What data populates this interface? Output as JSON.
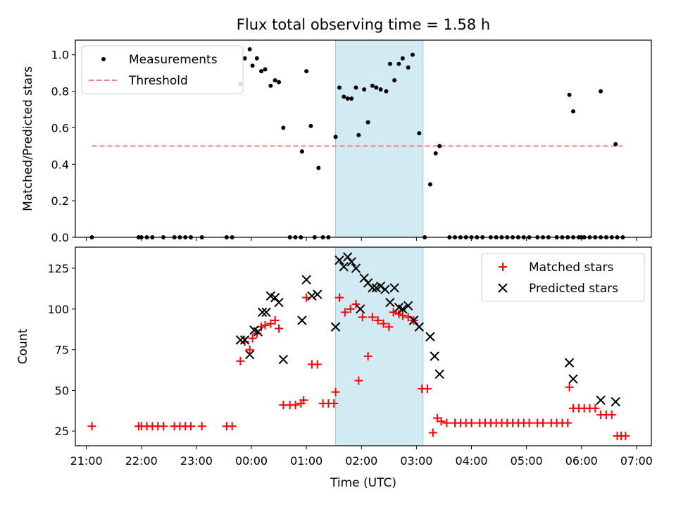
{
  "chart_data": [
    {
      "type": "scatter",
      "title": "Flux total observing time = 1.58 h",
      "xlabel": "",
      "ylabel": "Matched/Predicted stars",
      "xlim_hours": [
        20.8,
        31.27
      ],
      "ylim": [
        0,
        1.08
      ],
      "yticks": [
        "0.0",
        "0.2",
        "0.4",
        "0.6",
        "0.8",
        "1.0"
      ],
      "highlight_span_hours": [
        25.53,
        27.12
      ],
      "threshold": {
        "name": "Threshold",
        "y": 0.5,
        "x_range_hours": [
          21.1,
          30.75
        ],
        "color": "#f08080"
      },
      "legend": {
        "placement": "upper-left",
        "entries": [
          "Measurements",
          "Threshold"
        ]
      },
      "series": [
        {
          "name": "Measurements",
          "color": "#000000",
          "points": [
            [
              21.1,
              0
            ],
            [
              21.95,
              0
            ],
            [
              22.0,
              0
            ],
            [
              22.1,
              0
            ],
            [
              22.2,
              0
            ],
            [
              22.4,
              0
            ],
            [
              22.6,
              0
            ],
            [
              22.7,
              0
            ],
            [
              22.8,
              0
            ],
            [
              22.9,
              0
            ],
            [
              23.1,
              0
            ],
            [
              23.55,
              0
            ],
            [
              23.65,
              0
            ],
            [
              23.8,
              0.84
            ],
            [
              23.88,
              0.98
            ],
            [
              23.97,
              1.03
            ],
            [
              24.02,
              0.94
            ],
            [
              24.1,
              0.98
            ],
            [
              24.18,
              0.91
            ],
            [
              24.25,
              0.92
            ],
            [
              24.35,
              0.83
            ],
            [
              24.43,
              0.86
            ],
            [
              24.5,
              0.85
            ],
            [
              24.58,
              0.6
            ],
            [
              24.7,
              0
            ],
            [
              24.8,
              0
            ],
            [
              24.9,
              0
            ],
            [
              24.92,
              0.47
            ],
            [
              25.0,
              0.91
            ],
            [
              25.08,
              0.61
            ],
            [
              25.15,
              0
            ],
            [
              25.22,
              0.38
            ],
            [
              25.3,
              0
            ],
            [
              25.4,
              0
            ],
            [
              25.53,
              0.55
            ],
            [
              25.6,
              0.82
            ],
            [
              25.68,
              0.77
            ],
            [
              25.75,
              0.76
            ],
            [
              25.82,
              0.76
            ],
            [
              25.9,
              0.82
            ],
            [
              25.95,
              0.56
            ],
            [
              26.05,
              0.81
            ],
            [
              26.12,
              0.63
            ],
            [
              26.2,
              0.83
            ],
            [
              26.27,
              0.82
            ],
            [
              26.35,
              0.81
            ],
            [
              26.45,
              0.8
            ],
            [
              26.52,
              0.95
            ],
            [
              26.6,
              0.86
            ],
            [
              26.68,
              0.95
            ],
            [
              26.75,
              0.98
            ],
            [
              26.85,
              0.93
            ],
            [
              26.93,
              1.0
            ],
            [
              27.05,
              0.57
            ],
            [
              27.15,
              0
            ],
            [
              27.25,
              0.29
            ],
            [
              27.35,
              0.46
            ],
            [
              27.42,
              0.5
            ],
            [
              27.6,
              0
            ],
            [
              27.7,
              0
            ],
            [
              27.8,
              0
            ],
            [
              27.9,
              0
            ],
            [
              28.0,
              0
            ],
            [
              28.1,
              0
            ],
            [
              28.2,
              0
            ],
            [
              28.35,
              0
            ],
            [
              28.45,
              0
            ],
            [
              28.55,
              0
            ],
            [
              28.65,
              0
            ],
            [
              28.75,
              0
            ],
            [
              28.85,
              0
            ],
            [
              28.95,
              0
            ],
            [
              29.05,
              0
            ],
            [
              29.2,
              0
            ],
            [
              29.3,
              0
            ],
            [
              29.4,
              0
            ],
            [
              29.55,
              0
            ],
            [
              29.65,
              0
            ],
            [
              29.75,
              0
            ],
            [
              29.85,
              0
            ],
            [
              29.95,
              0
            ],
            [
              30.0,
              0
            ],
            [
              30.05,
              0
            ],
            [
              30.15,
              0
            ],
            [
              30.25,
              0
            ],
            [
              30.35,
              0
            ],
            [
              30.45,
              0
            ],
            [
              30.55,
              0
            ],
            [
              30.65,
              0
            ],
            [
              30.75,
              0
            ],
            [
              29.78,
              0.78
            ],
            [
              29.85,
              0.69
            ],
            [
              30.35,
              0.8
            ],
            [
              30.62,
              0.51
            ]
          ]
        }
      ]
    },
    {
      "type": "scatter",
      "title": "",
      "xlabel": "Time (UTC)",
      "ylabel": "Count",
      "xlim_hours": [
        20.8,
        31.27
      ],
      "ylim": [
        16,
        138
      ],
      "yticks": [
        "25",
        "50",
        "75",
        "100",
        "125"
      ],
      "xticks": [
        "21:00",
        "22:00",
        "23:00",
        "00:00",
        "01:00",
        "02:00",
        "03:00",
        "04:00",
        "05:00",
        "06:00",
        "07:00"
      ],
      "highlight_span_hours": [
        25.53,
        27.12
      ],
      "legend": {
        "placement": "upper-right",
        "entries": [
          "Matched stars",
          "Predicted stars"
        ]
      },
      "series": [
        {
          "name": "Matched stars",
          "color": "#ff0000",
          "marker": "+",
          "points": [
            [
              21.1,
              28
            ],
            [
              21.95,
              28
            ],
            [
              22.0,
              28
            ],
            [
              22.1,
              28
            ],
            [
              22.2,
              28
            ],
            [
              22.3,
              28
            ],
            [
              22.4,
              28
            ],
            [
              22.6,
              28
            ],
            [
              22.7,
              28
            ],
            [
              22.8,
              28
            ],
            [
              22.9,
              28
            ],
            [
              23.1,
              28
            ],
            [
              23.55,
              28
            ],
            [
              23.65,
              28
            ],
            [
              23.8,
              68
            ],
            [
              23.88,
              80
            ],
            [
              23.97,
              75
            ],
            [
              24.02,
              82
            ],
            [
              24.1,
              85
            ],
            [
              24.18,
              89
            ],
            [
              24.25,
              90
            ],
            [
              24.35,
              91
            ],
            [
              24.43,
              93
            ],
            [
              24.5,
              88
            ],
            [
              24.58,
              41
            ],
            [
              24.7,
              41
            ],
            [
              24.8,
              41
            ],
            [
              24.9,
              42
            ],
            [
              24.95,
              44
            ],
            [
              25.0,
              107
            ],
            [
              25.1,
              66
            ],
            [
              25.2,
              66
            ],
            [
              25.3,
              42
            ],
            [
              25.4,
              42
            ],
            [
              25.5,
              42
            ],
            [
              25.53,
              49
            ],
            [
              25.6,
              107
            ],
            [
              25.7,
              98
            ],
            [
              25.8,
              100
            ],
            [
              25.9,
              103
            ],
            [
              25.95,
              56
            ],
            [
              26.02,
              95
            ],
            [
              26.12,
              71
            ],
            [
              26.2,
              95
            ],
            [
              26.3,
              93
            ],
            [
              26.4,
              91
            ],
            [
              26.5,
              89
            ],
            [
              26.58,
              98
            ],
            [
              26.68,
              97
            ],
            [
              26.75,
              96
            ],
            [
              26.85,
              95
            ],
            [
              26.95,
              93
            ],
            [
              27.1,
              51
            ],
            [
              27.2,
              51
            ],
            [
              27.3,
              24
            ],
            [
              27.38,
              33
            ],
            [
              27.45,
              31
            ],
            [
              27.55,
              30
            ],
            [
              27.7,
              30
            ],
            [
              27.8,
              30
            ],
            [
              27.9,
              30
            ],
            [
              28.0,
              30
            ],
            [
              28.15,
              30
            ],
            [
              28.25,
              30
            ],
            [
              28.35,
              30
            ],
            [
              28.45,
              30
            ],
            [
              28.55,
              30
            ],
            [
              28.65,
              30
            ],
            [
              28.75,
              30
            ],
            [
              28.85,
              30
            ],
            [
              28.95,
              30
            ],
            [
              29.05,
              30
            ],
            [
              29.2,
              30
            ],
            [
              29.3,
              30
            ],
            [
              29.45,
              30
            ],
            [
              29.55,
              30
            ],
            [
              29.65,
              30
            ],
            [
              29.75,
              30
            ],
            [
              29.78,
              52
            ],
            [
              29.85,
              39
            ],
            [
              29.95,
              39
            ],
            [
              30.05,
              39
            ],
            [
              30.15,
              39
            ],
            [
              30.25,
              39
            ],
            [
              30.35,
              35
            ],
            [
              30.45,
              35
            ],
            [
              30.55,
              35
            ],
            [
              30.65,
              22
            ],
            [
              30.72,
              22
            ],
            [
              30.8,
              22
            ]
          ]
        },
        {
          "name": "Predicted stars",
          "color": "#000000",
          "marker": "x",
          "points": [
            [
              23.8,
              81
            ],
            [
              23.88,
              81
            ],
            [
              23.97,
              72
            ],
            [
              24.05,
              87
            ],
            [
              24.12,
              86
            ],
            [
              24.2,
              98
            ],
            [
              24.27,
              98
            ],
            [
              24.35,
              108
            ],
            [
              24.43,
              107
            ],
            [
              24.5,
              104
            ],
            [
              24.58,
              69
            ],
            [
              24.92,
              93
            ],
            [
              25.0,
              118
            ],
            [
              25.1,
              108
            ],
            [
              25.2,
              109
            ],
            [
              25.53,
              89
            ],
            [
              25.6,
              130
            ],
            [
              25.68,
              126
            ],
            [
              25.75,
              132
            ],
            [
              25.82,
              129
            ],
            [
              25.9,
              125
            ],
            [
              25.98,
              100
            ],
            [
              26.05,
              119
            ],
            [
              26.12,
              116
            ],
            [
              26.2,
              113
            ],
            [
              26.27,
              113
            ],
            [
              26.35,
              114
            ],
            [
              26.43,
              112
            ],
            [
              26.52,
              104
            ],
            [
              26.6,
              113
            ],
            [
              26.68,
              101
            ],
            [
              26.75,
              100
            ],
            [
              26.85,
              102
            ],
            [
              26.95,
              93
            ],
            [
              27.05,
              89
            ],
            [
              27.25,
              83
            ],
            [
              27.33,
              71
            ],
            [
              27.42,
              60
            ],
            [
              29.78,
              67
            ],
            [
              29.85,
              57
            ],
            [
              30.35,
              44
            ],
            [
              30.62,
              43
            ]
          ]
        }
      ]
    }
  ]
}
